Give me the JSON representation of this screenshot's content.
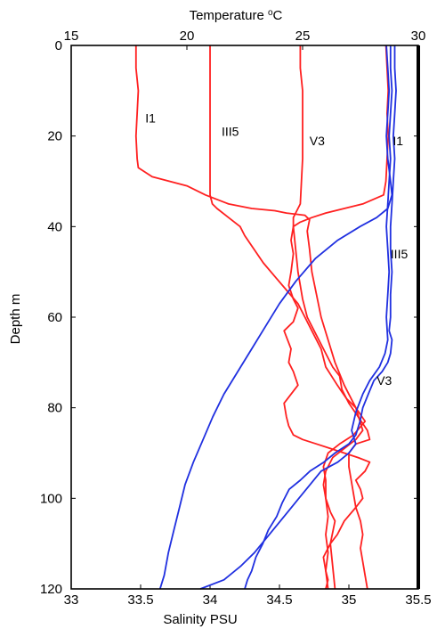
{
  "chart_data": {
    "type": "line",
    "top_axis": {
      "label": "Temperature",
      "unit_sup": "o",
      "unit": "C",
      "range": [
        15,
        30
      ],
      "ticks": [
        "15",
        "20",
        "25",
        "30"
      ]
    },
    "bottom_axis": {
      "label": "Salinity PSU",
      "range": [
        33,
        35.5
      ],
      "ticks": [
        "33",
        "33.5",
        "34",
        "34.5",
        "35",
        "35.5"
      ]
    },
    "y_axis": {
      "label": "Depth m",
      "range": [
        0,
        120
      ],
      "inverted": true,
      "ticks": [
        "0",
        "20",
        "40",
        "60",
        "80",
        "100",
        "120"
      ]
    },
    "colors": {
      "temperature": "#ff2020",
      "salinity": "#2030e0"
    },
    "annotations": [
      {
        "text": "I1",
        "x": 18.2,
        "y": 16,
        "axis": "temperature"
      },
      {
        "text": "III5",
        "x": 21.5,
        "y": 19,
        "axis": "temperature"
      },
      {
        "text": "V3",
        "x": 25.3,
        "y": 21,
        "axis": "temperature"
      },
      {
        "text": "I1",
        "x": 28.9,
        "y": 21,
        "axis": "temperature"
      },
      {
        "text": "III5",
        "x": 35.3,
        "y": 46,
        "axis": "salinity"
      },
      {
        "text": "V3",
        "x": 35.2,
        "y": 74,
        "axis": "salinity"
      }
    ],
    "series": [
      {
        "kind": "temperature",
        "axis": "temperature",
        "points": [
          [
            17.8,
            0
          ],
          [
            17.8,
            5
          ],
          [
            17.9,
            10
          ],
          [
            17.85,
            15
          ],
          [
            17.8,
            20
          ],
          [
            17.85,
            25
          ],
          [
            17.9,
            27
          ],
          [
            18.5,
            29
          ],
          [
            20,
            31
          ],
          [
            20.8,
            33
          ],
          [
            21.8,
            35
          ],
          [
            22.8,
            36
          ],
          [
            23.8,
            36.5
          ],
          [
            24.3,
            37
          ],
          [
            25.1,
            37.5
          ],
          [
            25.3,
            38.5
          ],
          [
            25.2,
            41
          ],
          [
            25.3,
            45
          ],
          [
            25.4,
            50
          ],
          [
            25.6,
            55
          ],
          [
            25.8,
            60
          ],
          [
            26.1,
            65
          ],
          [
            26.4,
            70
          ],
          [
            26.8,
            75
          ],
          [
            27.3,
            80
          ],
          [
            27.6,
            85
          ],
          [
            27.3,
            87
          ],
          [
            26.8,
            89
          ],
          [
            26.3,
            91
          ],
          [
            26.0,
            94
          ],
          [
            25.9,
            97
          ],
          [
            26.0,
            100
          ],
          [
            26.2,
            103
          ],
          [
            26.4,
            105
          ],
          [
            26.2,
            110
          ],
          [
            26.3,
            115
          ],
          [
            26.4,
            120
          ]
        ]
      },
      {
        "kind": "temperature",
        "axis": "temperature",
        "points": [
          [
            21,
            0
          ],
          [
            21,
            5
          ],
          [
            21,
            10
          ],
          [
            21,
            20
          ],
          [
            21,
            25
          ],
          [
            21,
            30
          ],
          [
            21,
            33
          ],
          [
            21.1,
            35
          ],
          [
            21.3,
            36
          ],
          [
            21.8,
            38
          ],
          [
            22.3,
            40
          ],
          [
            22.5,
            42
          ],
          [
            22.9,
            45
          ],
          [
            23.3,
            48
          ],
          [
            23.8,
            51
          ],
          [
            24.3,
            54
          ],
          [
            24.8,
            57
          ],
          [
            25.1,
            60
          ],
          [
            25.4,
            63
          ],
          [
            25.8,
            67
          ],
          [
            26.0,
            71
          ],
          [
            26.5,
            75
          ],
          [
            26.9,
            78
          ],
          [
            27.3,
            80
          ],
          [
            27.7,
            83
          ],
          [
            27.2,
            86
          ],
          [
            26.6,
            88
          ],
          [
            26.1,
            90
          ],
          [
            25.9,
            93
          ],
          [
            26.0,
            96
          ],
          [
            26.0,
            100
          ],
          [
            26.1,
            104
          ],
          [
            26.0,
            108
          ],
          [
            26.1,
            112
          ],
          [
            26.0,
            116
          ],
          [
            26.1,
            120
          ]
        ]
      },
      {
        "kind": "temperature",
        "axis": "temperature",
        "points": [
          [
            24.9,
            0
          ],
          [
            24.9,
            5
          ],
          [
            25.0,
            10
          ],
          [
            25.0,
            15
          ],
          [
            25.0,
            20
          ],
          [
            25.0,
            25
          ],
          [
            24.95,
            30
          ],
          [
            24.9,
            35
          ],
          [
            24.7,
            37
          ],
          [
            24.6,
            38
          ],
          [
            24.6,
            40
          ],
          [
            24.7,
            45
          ],
          [
            24.8,
            50
          ],
          [
            24.9,
            53
          ],
          [
            25.0,
            56
          ],
          [
            25.1,
            58
          ],
          [
            25.2,
            60
          ],
          [
            25.5,
            63
          ],
          [
            25.9,
            67
          ],
          [
            26.3,
            71
          ],
          [
            26.6,
            73
          ],
          [
            26.7,
            76
          ],
          [
            27.0,
            79
          ],
          [
            27.4,
            82
          ],
          [
            27.8,
            85
          ],
          [
            27.9,
            87
          ],
          [
            27.3,
            88
          ],
          [
            27.0,
            90
          ],
          [
            27.0,
            93
          ],
          [
            27.1,
            96
          ],
          [
            27.2,
            99
          ],
          [
            27.3,
            102
          ],
          [
            27.5,
            105
          ],
          [
            27.6,
            108
          ],
          [
            27.5,
            111
          ],
          [
            27.6,
            114
          ],
          [
            27.7,
            117
          ],
          [
            27.8,
            120
          ]
        ]
      },
      {
        "kind": "temperature",
        "axis": "temperature",
        "points": [
          [
            28.6,
            0
          ],
          [
            28.65,
            5
          ],
          [
            28.7,
            10
          ],
          [
            28.65,
            15
          ],
          [
            28.7,
            20
          ],
          [
            28.65,
            25
          ],
          [
            28.6,
            30
          ],
          [
            28.5,
            33
          ],
          [
            27.6,
            35
          ],
          [
            26.8,
            36
          ],
          [
            26.0,
            37
          ],
          [
            25.4,
            38
          ],
          [
            24.9,
            39
          ],
          [
            24.6,
            40
          ],
          [
            24.5,
            43
          ],
          [
            24.6,
            46
          ],
          [
            24.5,
            50
          ],
          [
            24.4,
            53
          ],
          [
            24.6,
            56
          ],
          [
            24.8,
            58
          ],
          [
            24.6,
            61
          ],
          [
            24.2,
            63
          ],
          [
            24.5,
            67
          ],
          [
            24.4,
            70
          ],
          [
            24.6,
            72
          ],
          [
            24.8,
            75
          ],
          [
            24.5,
            77
          ],
          [
            24.2,
            79
          ],
          [
            24.3,
            82
          ],
          [
            24.4,
            84
          ],
          [
            24.6,
            86
          ],
          [
            25.0,
            87
          ],
          [
            25.6,
            88
          ],
          [
            26.2,
            89
          ],
          [
            26.8,
            90
          ],
          [
            27.4,
            91
          ],
          [
            27.9,
            92
          ],
          [
            27.7,
            94
          ],
          [
            27.3,
            96
          ],
          [
            27.5,
            98
          ],
          [
            27.6,
            100
          ],
          [
            27.3,
            102
          ],
          [
            26.8,
            105
          ],
          [
            26.5,
            108
          ],
          [
            26.2,
            110
          ],
          [
            25.9,
            113
          ],
          [
            26.0,
            116
          ],
          [
            26.1,
            118
          ],
          [
            26.0,
            120
          ]
        ]
      },
      {
        "kind": "salinity",
        "axis": "salinity",
        "points": [
          [
            35.27,
            0
          ],
          [
            35.28,
            5
          ],
          [
            35.29,
            10
          ],
          [
            35.28,
            15
          ],
          [
            35.27,
            20
          ],
          [
            35.28,
            25
          ],
          [
            35.3,
            30
          ],
          [
            35.31,
            33
          ],
          [
            35.28,
            36
          ],
          [
            35.2,
            38
          ],
          [
            35.08,
            40
          ],
          [
            34.92,
            43
          ],
          [
            34.76,
            47
          ],
          [
            34.62,
            52
          ],
          [
            34.5,
            57
          ],
          [
            34.4,
            62
          ],
          [
            34.3,
            67
          ],
          [
            34.2,
            72
          ],
          [
            34.1,
            77
          ],
          [
            34.02,
            82
          ],
          [
            33.95,
            87
          ],
          [
            33.88,
            92
          ],
          [
            33.82,
            97
          ],
          [
            33.78,
            102
          ],
          [
            33.74,
            107
          ],
          [
            33.7,
            112
          ],
          [
            33.67,
            117
          ],
          [
            33.64,
            120
          ]
        ]
      },
      {
        "kind": "salinity",
        "axis": "salinity",
        "points": [
          [
            35.3,
            0
          ],
          [
            35.3,
            5
          ],
          [
            35.31,
            10
          ],
          [
            35.3,
            15
          ],
          [
            35.29,
            20
          ],
          [
            35.3,
            25
          ],
          [
            35.29,
            30
          ],
          [
            35.28,
            35
          ],
          [
            35.27,
            40
          ],
          [
            35.28,
            45
          ],
          [
            35.29,
            50
          ],
          [
            35.28,
            55
          ],
          [
            35.27,
            60
          ],
          [
            35.28,
            65
          ],
          [
            35.26,
            68
          ],
          [
            35.22,
            71
          ],
          [
            35.15,
            74
          ],
          [
            35.1,
            77
          ],
          [
            35.05,
            81
          ],
          [
            35.02,
            85
          ],
          [
            35.05,
            88
          ],
          [
            35.0,
            90
          ],
          [
            34.92,
            92
          ],
          [
            34.8,
            94
          ],
          [
            34.72,
            97
          ],
          [
            34.64,
            100
          ],
          [
            34.56,
            103
          ],
          [
            34.48,
            106
          ],
          [
            34.4,
            109
          ],
          [
            34.32,
            112
          ],
          [
            34.22,
            115
          ],
          [
            34.1,
            118
          ],
          [
            33.93,
            120
          ]
        ]
      },
      {
        "kind": "salinity",
        "axis": "salinity",
        "points": [
          [
            35.33,
            0
          ],
          [
            35.33,
            5
          ],
          [
            35.34,
            10
          ],
          [
            35.33,
            15
          ],
          [
            35.32,
            20
          ],
          [
            35.33,
            25
          ],
          [
            35.32,
            30
          ],
          [
            35.31,
            35
          ],
          [
            35.3,
            40
          ],
          [
            35.3,
            45
          ],
          [
            35.31,
            50
          ],
          [
            35.3,
            55
          ],
          [
            35.3,
            60
          ],
          [
            35.29,
            63
          ],
          [
            35.31,
            65
          ],
          [
            35.3,
            68
          ],
          [
            35.28,
            70
          ],
          [
            35.24,
            72
          ],
          [
            35.18,
            74
          ],
          [
            35.14,
            77
          ],
          [
            35.1,
            80
          ],
          [
            35.08,
            83
          ],
          [
            35.05,
            86
          ],
          [
            35.0,
            88
          ],
          [
            34.9,
            90
          ],
          [
            34.82,
            92
          ],
          [
            34.72,
            94
          ],
          [
            34.65,
            96
          ],
          [
            34.57,
            98
          ],
          [
            34.52,
            101
          ],
          [
            34.48,
            104
          ],
          [
            34.42,
            107
          ],
          [
            34.38,
            110
          ],
          [
            34.33,
            113
          ],
          [
            34.3,
            116
          ],
          [
            34.27,
            118
          ],
          [
            34.25,
            120
          ]
        ]
      }
    ]
  }
}
